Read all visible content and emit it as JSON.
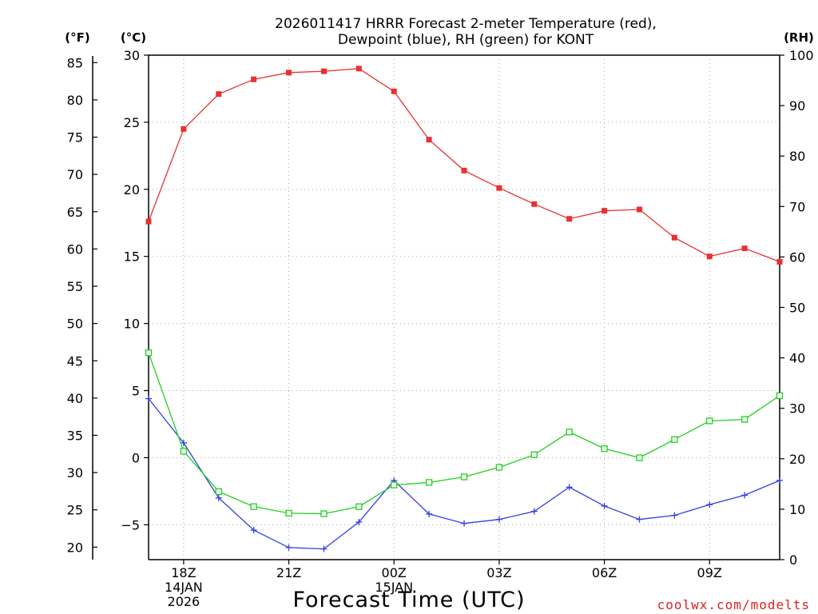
{
  "chart_data": {
    "type": "line",
    "title_line1": "2026011417 HRRR Forecast 2-meter Temperature (red),",
    "title_line2": "Dewpoint (blue), RH (green) for KONT",
    "units": {
      "fahrenheit": "(°F)",
      "celsius": "(°C)",
      "rh": "(RH)"
    },
    "xlabel": "Forecast Time (UTC)",
    "credit": "coolwx.com/modelts",
    "x": [
      17,
      18,
      19,
      20,
      21,
      22,
      23,
      24,
      25,
      26,
      27,
      28,
      29,
      30,
      31,
      32,
      33,
      34,
      35
    ],
    "xlim": [
      17,
      35
    ],
    "x_ticks": [
      {
        "x": 18,
        "lines": [
          "18Z",
          "14JAN",
          "2026"
        ]
      },
      {
        "x": 21,
        "lines": [
          "21Z"
        ]
      },
      {
        "x": 24,
        "lines": [
          "00Z",
          "15JAN"
        ]
      },
      {
        "x": 27,
        "lines": [
          "03Z"
        ]
      },
      {
        "x": 30,
        "lines": [
          "06Z"
        ]
      },
      {
        "x": 33,
        "lines": [
          "09Z"
        ]
      }
    ],
    "celsius_axis": {
      "lim": [
        -7.6,
        30.0
      ],
      "ticks": [
        30,
        25,
        20,
        15,
        10,
        5,
        0,
        -5
      ],
      "labels": [
        "30",
        "25",
        "20",
        "15",
        "10",
        "5",
        "0",
        "−5"
      ]
    },
    "fahrenheit_axis": {
      "ticks": [
        85,
        80,
        75,
        70,
        65,
        60,
        55,
        50,
        45,
        40,
        35,
        30,
        25,
        20
      ],
      "labels": [
        "85",
        "80",
        "75",
        "70",
        "65",
        "60",
        "55",
        "50",
        "45",
        "40",
        "35",
        "30",
        "25",
        "20"
      ]
    },
    "rh_axis": {
      "lim": [
        0,
        100
      ],
      "ticks": [
        100,
        90,
        80,
        70,
        60,
        50,
        40,
        30,
        20,
        10,
        0
      ],
      "labels": [
        "100",
        "90",
        "80",
        "70",
        "60",
        "50",
        "40",
        "30",
        "20",
        "10",
        "0"
      ]
    },
    "series": [
      {
        "name": "Temperature",
        "axis": "celsius",
        "color": "#e83030",
        "marker": "filled-square",
        "values": [
          17.6,
          24.5,
          27.1,
          28.2,
          28.7,
          28.8,
          29.0,
          27.3,
          23.7,
          21.4,
          20.1,
          18.9,
          17.8,
          18.4,
          18.5,
          16.4,
          15.0,
          15.6,
          14.6
        ]
      },
      {
        "name": "Dewpoint",
        "axis": "celsius",
        "color": "#3040e0",
        "marker": "plus",
        "values": [
          4.4,
          1.1,
          -3.0,
          -5.4,
          -6.7,
          -6.8,
          -4.8,
          -1.7,
          -4.2,
          -4.9,
          -4.6,
          -4.0,
          -2.2,
          -3.6,
          -4.6,
          -4.3,
          -3.5,
          -2.8,
          -1.7
        ]
      },
      {
        "name": "RH",
        "axis": "rh",
        "color": "#20d020",
        "marker": "open-square",
        "values": [
          41.0,
          21.5,
          13.5,
          10.5,
          9.2,
          9.1,
          10.5,
          14.8,
          15.3,
          16.4,
          18.3,
          20.8,
          25.3,
          22.0,
          20.2,
          23.8,
          27.5,
          27.8,
          32.5
        ]
      }
    ]
  }
}
